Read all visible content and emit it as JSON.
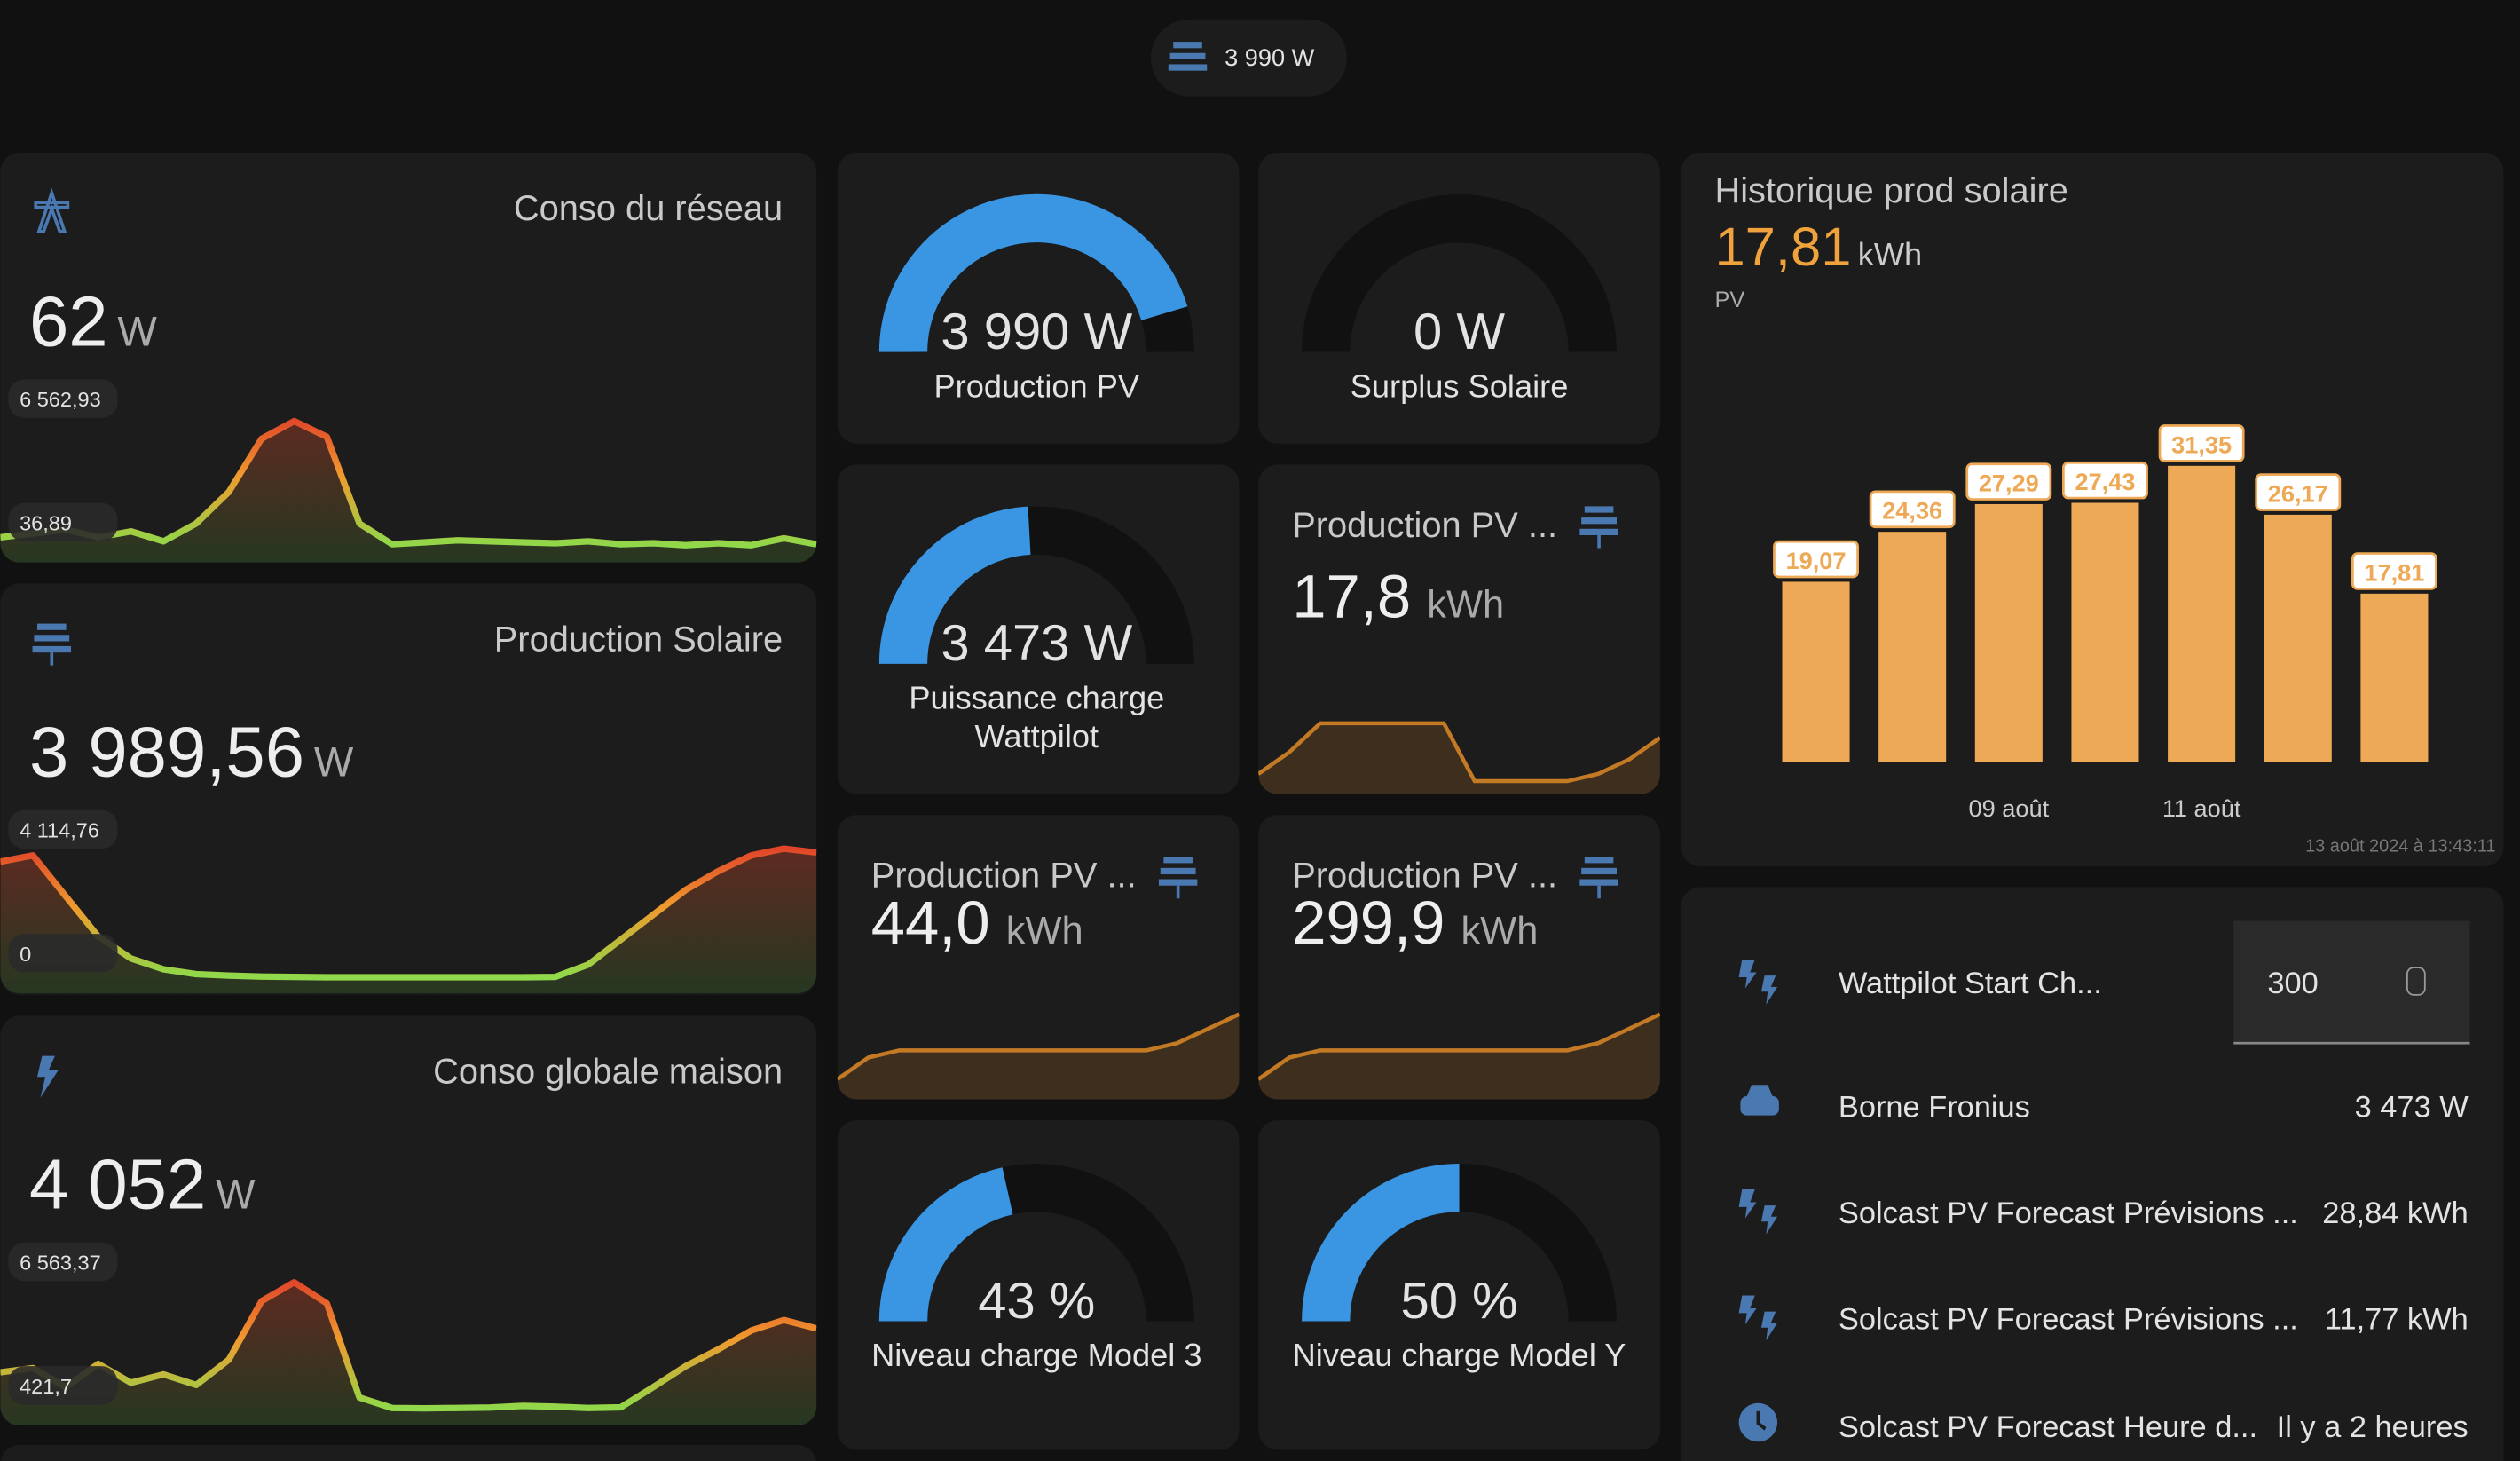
{
  "top_badge": {
    "text": "3 990 W"
  },
  "sensors": [
    {
      "title": "Conso du réseau",
      "value": "62",
      "unit": "W",
      "max_label": "6 562,93",
      "min_label": "36,89",
      "ylim": [
        36.89,
        6562.93
      ],
      "trend": [
        500,
        700,
        900,
        500,
        800,
        300,
        1200,
        2800,
        5500,
        6400,
        5600,
        1200,
        150,
        250,
        350,
        300,
        250,
        200,
        300,
        150,
        200,
        100,
        200,
        100,
        450,
        150
      ]
    },
    {
      "title": "Production Solaire",
      "value": "3 989,56",
      "unit": "W",
      "max_label": "4 114,76",
      "min_label": "0",
      "ylim": [
        0,
        4114.76
      ],
      "trend": [
        3700,
        3900,
        2600,
        1300,
        600,
        250,
        100,
        50,
        20,
        10,
        0,
        0,
        0,
        0,
        0,
        0,
        0,
        10,
        400,
        1200,
        2000,
        2800,
        3400,
        3900,
        4114,
        3990
      ]
    },
    {
      "title": "Conso globale maison",
      "value": "4 052",
      "unit": "W",
      "max_label": "6 563,37",
      "min_label": "421,7",
      "ylim": [
        421.7,
        6563.37
      ],
      "trend": [
        2200,
        2400,
        1500,
        2600,
        1700,
        2100,
        1600,
        2800,
        5600,
        6500,
        5500,
        1000,
        500,
        480,
        500,
        520,
        600,
        560,
        500,
        530,
        1500,
        2500,
        3300,
        4200,
        4700,
        4300
      ]
    }
  ],
  "gauges": [
    {
      "value": 3990,
      "label": "3 990 W",
      "name": "Production PV",
      "min": 0,
      "max": 4400
    },
    {
      "value": 0,
      "label": "0 W",
      "name": "Surplus Solaire",
      "min": 0,
      "max": 1000
    },
    {
      "value": 3473,
      "label": "3 473 W",
      "name": "Puissance charge Wattpilot",
      "min": 0,
      "max": 7200
    },
    {
      "value": 43,
      "label": "43 %",
      "name": "Niveau charge Model 3",
      "min": 0,
      "max": 100
    },
    {
      "value": 50,
      "label": "50 %",
      "name": "Niveau charge Model Y",
      "min": 0,
      "max": 100
    }
  ],
  "energy": [
    {
      "title": "Production PV ...",
      "value": "17,8",
      "unit": "kWh",
      "ylim": [
        0,
        10
      ],
      "trend": [
        1,
        4,
        8,
        8,
        8,
        8,
        8,
        0,
        0,
        0,
        0,
        1,
        3,
        6
      ]
    },
    {
      "title": "Production PV ...",
      "value": "44,0",
      "unit": "kWh",
      "ylim": [
        0,
        10
      ],
      "trend": [
        1,
        4,
        5,
        5,
        5,
        5,
        5,
        5,
        5,
        5,
        5,
        6,
        8,
        10
      ]
    },
    {
      "title": "Production PV ...",
      "value": "299,9",
      "unit": "kWh",
      "ylim": [
        0,
        10
      ],
      "trend": [
        1,
        4,
        5,
        5,
        5,
        5,
        5,
        5,
        5,
        5,
        5,
        6,
        8,
        10
      ]
    }
  ],
  "solar_history": {
    "title": "Historique prod solaire",
    "total": "17,81",
    "unit": "kWh",
    "series_name": "PV",
    "timestamp": "13 août 2024 à 13:43:11",
    "chart_data": {
      "type": "bar",
      "color": "#eda955",
      "categories": [
        null,
        null,
        "09 août",
        null,
        "11 août",
        null,
        null
      ],
      "values": [
        19.07,
        24.36,
        27.29,
        27.43,
        31.35,
        26.17,
        17.81
      ],
      "value_labels": [
        "19,07",
        "24,36",
        "27,29",
        "27,43",
        "31,35",
        "26,17",
        "17,81"
      ],
      "ylim": [
        0,
        40
      ]
    }
  },
  "entities": [
    {
      "name": "Wattpilot Start Ch...",
      "value": "300"
    },
    {
      "name": "Borne Fronius",
      "value": "3 473 W"
    },
    {
      "name": "Solcast PV Forecast Prévisions ...",
      "value": "28,84 kWh"
    },
    {
      "name": "Solcast PV Forecast Prévisions ...",
      "value": "11,77 kWh"
    },
    {
      "name": "Solcast PV Forecast Heure d...",
      "value": "Il y a 2 heures"
    }
  ]
}
